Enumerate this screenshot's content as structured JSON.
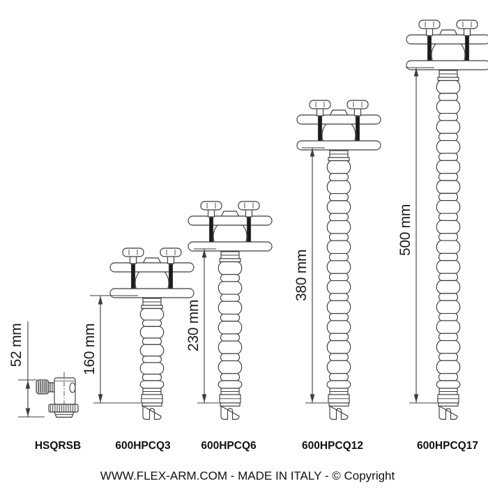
{
  "colors": {
    "line": "#3c3c3c",
    "bolt": "#1a1a1a",
    "text": "#1b1b1b",
    "background": "#ffffff"
  },
  "products": [
    {
      "code": "HSQRSB",
      "dimension": "52 mm",
      "length_mm": 52,
      "type": "swivel-head"
    },
    {
      "code": "600HPCQ3",
      "dimension": "160 mm",
      "length_mm": 160,
      "type": "flex-arm"
    },
    {
      "code": "600HPCQ6",
      "dimension": "230 mm",
      "length_mm": 230,
      "type": "flex-arm"
    },
    {
      "code": "600HPCQ12",
      "dimension": "380 mm",
      "length_mm": 380,
      "type": "flex-arm"
    },
    {
      "code": "600HPCQ17",
      "dimension": "500 mm",
      "length_mm": 500,
      "type": "flex-arm"
    }
  ],
  "footer": {
    "text": "WWW.FLEX-ARM.COM - MADE IN ITALY - © Copyright"
  }
}
